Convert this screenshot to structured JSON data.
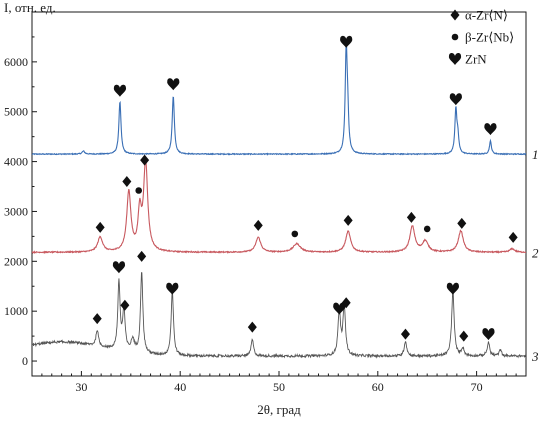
{
  "chart_data": {
    "type": "line",
    "title": "",
    "xlabel": "2θ, град",
    "ylabel": "I, отн. ед.",
    "xlim": [
      25,
      75
    ],
    "ylim": [
      -300,
      7000
    ],
    "x_ticks": [
      "30",
      "40",
      "50",
      "60",
      "70"
    ],
    "y_ticks": [
      "0",
      "1000",
      "2000",
      "3000",
      "4000",
      "5000",
      "6000"
    ],
    "grid": false,
    "legend": {
      "position": "top-right",
      "entries": [
        {
          "marker": "diamond",
          "label": "α-Zr⟨N⟩"
        },
        {
          "marker": "circle",
          "label": "β-Zr⟨Nb⟩"
        },
        {
          "marker": "heart",
          "label": "ZrN"
        }
      ]
    },
    "series": [
      {
        "name": "1",
        "color": "#3a6fb5",
        "baseline": 4150,
        "peaks": [
          {
            "x": 30.2,
            "h": 60,
            "w": 0.15
          },
          {
            "x": 33.9,
            "h": 1050,
            "w": 0.13
          },
          {
            "x": 39.3,
            "h": 1170,
            "w": 0.13
          },
          {
            "x": 56.8,
            "h": 2020,
            "w": 0.12
          },
          {
            "x": 56.95,
            "h": 650,
            "w": 0.12
          },
          {
            "x": 67.9,
            "h": 880,
            "w": 0.12
          },
          {
            "x": 68.1,
            "h": 320,
            "w": 0.12
          },
          {
            "x": 71.4,
            "h": 260,
            "w": 0.12
          }
        ],
        "markers": [
          {
            "x": 33.9,
            "y": 5420,
            "type": "heart"
          },
          {
            "x": 39.3,
            "y": 5550,
            "type": "heart"
          },
          {
            "x": 56.8,
            "y": 6400,
            "type": "heart"
          },
          {
            "x": 67.9,
            "y": 5250,
            "type": "heart"
          },
          {
            "x": 71.4,
            "y": 4650,
            "type": "heart"
          }
        ]
      },
      {
        "name": "2",
        "color": "#c8595f",
        "baseline": 2180,
        "peaks": [
          {
            "x": 31.9,
            "h": 300,
            "w": 0.3
          },
          {
            "x": 34.8,
            "h": 1200,
            "w": 0.25
          },
          {
            "x": 35.9,
            "h": 750,
            "w": 0.2
          },
          {
            "x": 36.5,
            "h": 1780,
            "w": 0.25
          },
          {
            "x": 47.9,
            "h": 300,
            "w": 0.3
          },
          {
            "x": 51.8,
            "h": 170,
            "w": 0.45
          },
          {
            "x": 57.0,
            "h": 420,
            "w": 0.3
          },
          {
            "x": 63.5,
            "h": 520,
            "w": 0.3
          },
          {
            "x": 64.8,
            "h": 220,
            "w": 0.35
          },
          {
            "x": 68.4,
            "h": 430,
            "w": 0.3
          },
          {
            "x": 73.6,
            "h": 70,
            "w": 0.3
          }
        ],
        "markers": [
          {
            "x": 31.9,
            "y": 2680,
            "type": "diamond"
          },
          {
            "x": 34.6,
            "y": 3600,
            "type": "diamond"
          },
          {
            "x": 35.8,
            "y": 3420,
            "type": "circle"
          },
          {
            "x": 36.4,
            "y": 4030,
            "type": "diamond"
          },
          {
            "x": 47.9,
            "y": 2720,
            "type": "diamond"
          },
          {
            "x": 51.6,
            "y": 2550,
            "type": "circle"
          },
          {
            "x": 57.0,
            "y": 2820,
            "type": "diamond"
          },
          {
            "x": 63.4,
            "y": 2880,
            "type": "diamond"
          },
          {
            "x": 65.0,
            "y": 2650,
            "type": "circle"
          },
          {
            "x": 68.5,
            "y": 2760,
            "type": "diamond"
          },
          {
            "x": 73.7,
            "y": 2480,
            "type": "diamond"
          }
        ]
      },
      {
        "name": "3",
        "color": "#555555",
        "baseline": 100,
        "hump": {
          "x": 28,
          "h": 280,
          "w": 6
        },
        "peaks": [
          {
            "x": 31.6,
            "h": 320,
            "w": 0.15
          },
          {
            "x": 33.8,
            "h": 1350,
            "w": 0.14
          },
          {
            "x": 34.3,
            "h": 800,
            "w": 0.15
          },
          {
            "x": 35.2,
            "h": 250,
            "w": 0.2
          },
          {
            "x": 36.1,
            "h": 1650,
            "w": 0.14
          },
          {
            "x": 39.2,
            "h": 1300,
            "w": 0.14
          },
          {
            "x": 47.3,
            "h": 330,
            "w": 0.15
          },
          {
            "x": 56.1,
            "h": 900,
            "w": 0.15
          },
          {
            "x": 56.6,
            "h": 1000,
            "w": 0.15
          },
          {
            "x": 62.8,
            "h": 300,
            "w": 0.15
          },
          {
            "x": 67.6,
            "h": 1300,
            "w": 0.15
          },
          {
            "x": 68.6,
            "h": 160,
            "w": 0.15
          },
          {
            "x": 71.2,
            "h": 270,
            "w": 0.15
          },
          {
            "x": 72.4,
            "h": 120,
            "w": 0.15
          }
        ],
        "markers": [
          {
            "x": 31.6,
            "y": 850,
            "type": "diamond"
          },
          {
            "x": 33.8,
            "y": 1880,
            "type": "heart"
          },
          {
            "x": 34.4,
            "y": 1120,
            "type": "diamond"
          },
          {
            "x": 36.1,
            "y": 2100,
            "type": "diamond"
          },
          {
            "x": 39.2,
            "y": 1450,
            "type": "heart"
          },
          {
            "x": 47.3,
            "y": 680,
            "type": "diamond"
          },
          {
            "x": 56.1,
            "y": 1050,
            "type": "heart"
          },
          {
            "x": 56.8,
            "y": 1170,
            "type": "diamond"
          },
          {
            "x": 62.8,
            "y": 540,
            "type": "diamond"
          },
          {
            "x": 67.6,
            "y": 1450,
            "type": "heart"
          },
          {
            "x": 68.7,
            "y": 500,
            "type": "diamond"
          },
          {
            "x": 71.2,
            "y": 540,
            "type": "heart"
          }
        ]
      }
    ]
  }
}
